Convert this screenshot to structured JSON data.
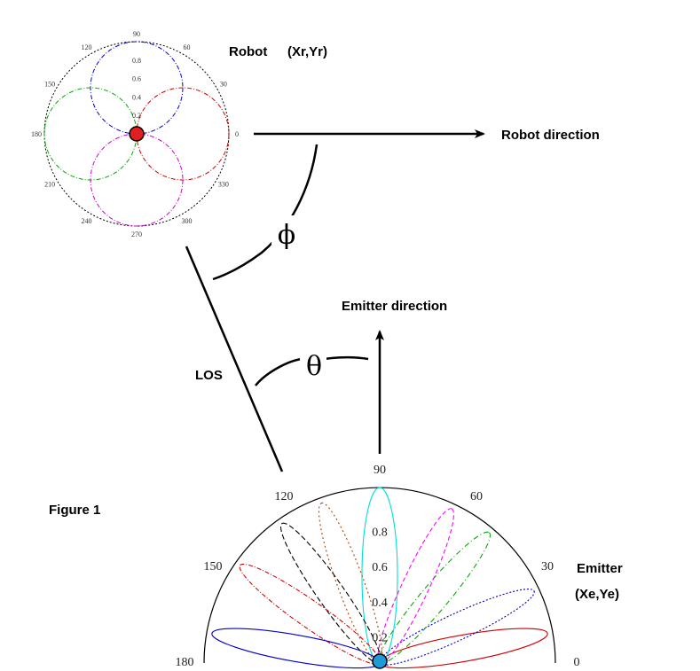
{
  "labels": {
    "robot": "Robot",
    "robot_coords": "(Xr,Yr)",
    "robot_direction": "Robot direction",
    "emitter_direction": "Emitter direction",
    "los": "LOS",
    "figure": "Figure 1",
    "emitter": "Emitter",
    "emitter_coords": "(Xe,Ye)",
    "phi": "ϕ",
    "theta": "θ"
  },
  "robot_polar": {
    "angle_ticks": [
      "90",
      "60",
      "30",
      "0",
      "330",
      "300",
      "270",
      "240",
      "210",
      "180",
      "150",
      "120"
    ],
    "radial_ticks": [
      "0.8",
      "0.6",
      "0.4",
      "0.2"
    ],
    "lobes": [
      {
        "color": "#0000cc",
        "direction_deg": 90
      },
      {
        "color": "#cc0000",
        "direction_deg": 0
      },
      {
        "color": "#00aa00",
        "direction_deg": 180
      },
      {
        "color": "#cc00cc",
        "direction_deg": 270
      }
    ],
    "center_marker_color": "#e02020"
  },
  "emitter_polar": {
    "angle_ticks": [
      "90",
      "60",
      "30",
      "0",
      "180",
      "150",
      "120"
    ],
    "radial_ticks": [
      "0.8",
      "0.6",
      "0.4",
      "0.2"
    ],
    "lobes": [
      {
        "color": "#cc0000",
        "direction_deg": 10
      },
      {
        "color": "#0000cc",
        "direction_deg": 25
      },
      {
        "color": "#00aa00",
        "direction_deg": 50
      },
      {
        "color": "#ff00ff",
        "direction_deg": 65
      },
      {
        "color": "#00dddd",
        "direction_deg": 90
      },
      {
        "color": "#aa4400",
        "direction_deg": 110
      },
      {
        "color": "#000000",
        "direction_deg": 125
      },
      {
        "color": "#dd0000",
        "direction_deg": 145
      },
      {
        "color": "#0000cc",
        "direction_deg": 170
      }
    ],
    "center_marker_color": "#1e9ad6"
  }
}
